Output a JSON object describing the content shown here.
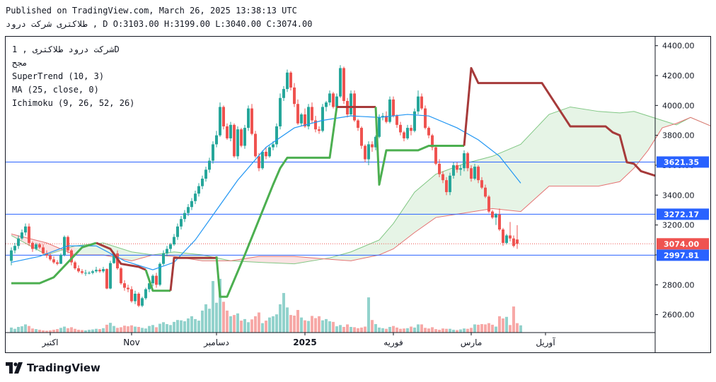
{
  "header": {
    "published": "Published on TradingView.com, March 26, 2025 13:38:13 UTC",
    "symbol_line": "طلاکتری  شرکت درود    , D O:3103.00 H:3199.00 L:3040.00 C:3074.00"
  },
  "legend": {
    "symbol": "شرکت درود  طلاکتری , 1D",
    "exchange": "مجح",
    "indicators": [
      "SuperTrend (10, 3)",
      "MA (25, close, 0)",
      "Ichimoku (9, 26, 52, 26)"
    ]
  },
  "colors": {
    "up": "#26a69a",
    "down": "#ef5350",
    "supertrend_up": "#4caf50",
    "supertrend_down": "#a63a3a",
    "ma": "#2196f3",
    "hline": "#2962ff",
    "cloud_green": "#a5d6a7",
    "cloud_red": "#ef9a9a"
  },
  "chart_data": {
    "type": "candlestick",
    "ylim": [
      2480,
      4460
    ],
    "y_ticks": [
      2600,
      2800,
      3000,
      3200,
      3400,
      3600,
      3800,
      4000,
      4200,
      4400
    ],
    "y_tick_labels": [
      "2600.00",
      "2800.00",
      "3000.00",
      "3200.00",
      "3400.00",
      "3600.00",
      "3800.00",
      "4000.00",
      "4200.00",
      "4400.00"
    ],
    "x_ticks": [
      {
        "label": "اکتبر",
        "index": 11
      },
      {
        "label": "Nov",
        "index": 34
      },
      {
        "label": "دسامبر",
        "index": 58
      },
      {
        "label": "2025",
        "index": 83,
        "bold": true
      },
      {
        "label": "فوریه",
        "index": 108
      },
      {
        "label": "مارس",
        "index": 130
      },
      {
        "label": "آوریل",
        "index": 151
      }
    ],
    "price_lines": [
      {
        "value": 3621.35,
        "label": "3621.35",
        "color": "#2962ff"
      },
      {
        "value": 3272.17,
        "label": "3272.17",
        "color": "#2962ff"
      },
      {
        "value": 2997.81,
        "label": "2997.81",
        "color": "#2962ff"
      },
      {
        "value": 3074.0,
        "label": "3074.00",
        "color": "#ef5350",
        "dotted": true
      }
    ],
    "candles": [
      [
        2960,
        3050,
        2930,
        3030
      ],
      [
        3030,
        3080,
        3010,
        3060
      ],
      [
        3060,
        3130,
        3040,
        3110
      ],
      [
        3110,
        3170,
        3100,
        3150
      ],
      [
        3150,
        3210,
        3130,
        3190
      ],
      [
        3190,
        3210,
        3060,
        3080
      ],
      [
        3080,
        3090,
        3020,
        3040
      ],
      [
        3040,
        3080,
        3030,
        3070
      ],
      [
        3070,
        3080,
        3040,
        3050
      ],
      [
        3050,
        3070,
        3000,
        3010
      ],
      [
        3010,
        3030,
        2980,
        2995
      ],
      [
        2995,
        3010,
        2960,
        2970
      ],
      [
        2970,
        2990,
        2940,
        2950
      ],
      [
        2950,
        2965,
        2930,
        2940
      ],
      [
        2940,
        3010,
        2940,
        3000
      ],
      [
        3000,
        3130,
        2990,
        3120
      ],
      [
        3120,
        3130,
        3010,
        3030
      ],
      [
        3030,
        3040,
        2930,
        2950
      ],
      [
        2950,
        2960,
        2900,
        2910
      ],
      [
        2910,
        2930,
        2880,
        2890
      ],
      [
        2890,
        2905,
        2870,
        2880
      ],
      [
        2880,
        2900,
        2860,
        2880
      ],
      [
        2880,
        2890,
        2870,
        2880
      ],
      [
        2880,
        2900,
        2870,
        2890
      ],
      [
        2890,
        2920,
        2880,
        2900
      ],
      [
        2900,
        2910,
        2880,
        2890
      ],
      [
        2890,
        2920,
        2880,
        2905
      ],
      [
        2905,
        2910,
        2770,
        2775
      ],
      [
        2775,
        2960,
        2770,
        2945
      ],
      [
        2945,
        3020,
        2940,
        3010
      ],
      [
        3010,
        3030,
        2900,
        2910
      ],
      [
        2910,
        2920,
        2800,
        2810
      ],
      [
        2810,
        2830,
        2760,
        2780
      ],
      [
        2780,
        2800,
        2750,
        2770
      ],
      [
        2770,
        2790,
        2680,
        2690
      ],
      [
        2690,
        2760,
        2670,
        2740
      ],
      [
        2740,
        2750,
        2650,
        2660
      ],
      [
        2660,
        2720,
        2650,
        2710
      ],
      [
        2710,
        2780,
        2700,
        2770
      ],
      [
        2770,
        2820,
        2750,
        2810
      ],
      [
        2810,
        2870,
        2790,
        2860
      ],
      [
        2860,
        2880,
        2780,
        2800
      ],
      [
        2800,
        2950,
        2790,
        2940
      ],
      [
        2940,
        3030,
        2930,
        3010
      ],
      [
        3010,
        3060,
        2990,
        3040
      ],
      [
        3040,
        3080,
        3020,
        3070
      ],
      [
        3070,
        3140,
        3060,
        3120
      ],
      [
        3120,
        3210,
        3100,
        3190
      ],
      [
        3190,
        3260,
        3170,
        3240
      ],
      [
        3240,
        3300,
        3220,
        3280
      ],
      [
        3280,
        3340,
        3260,
        3320
      ],
      [
        3320,
        3380,
        3300,
        3360
      ],
      [
        3360,
        3430,
        3340,
        3410
      ],
      [
        3410,
        3480,
        3390,
        3460
      ],
      [
        3460,
        3530,
        3440,
        3510
      ],
      [
        3510,
        3590,
        3490,
        3570
      ],
      [
        3570,
        3650,
        3550,
        3630
      ],
      [
        3630,
        3760,
        3610,
        3740
      ],
      [
        3740,
        3830,
        3720,
        3800
      ],
      [
        3800,
        4020,
        3790,
        3990
      ],
      [
        3990,
        4000,
        3840,
        3860
      ],
      [
        3860,
        3880,
        3770,
        3780
      ],
      [
        3780,
        3890,
        3760,
        3870
      ],
      [
        3870,
        3880,
        3650,
        3660
      ],
      [
        3660,
        3860,
        3640,
        3840
      ],
      [
        3840,
        3850,
        3720,
        3730
      ],
      [
        3730,
        3870,
        3710,
        3850
      ],
      [
        3850,
        4000,
        3830,
        3980
      ],
      [
        3980,
        4010,
        3800,
        3810
      ],
      [
        3810,
        3830,
        3650,
        3660
      ],
      [
        3660,
        3680,
        3560,
        3580
      ],
      [
        3580,
        3700,
        3570,
        3690
      ],
      [
        3690,
        3720,
        3640,
        3660
      ],
      [
        3660,
        3730,
        3650,
        3720
      ],
      [
        3720,
        3760,
        3700,
        3740
      ],
      [
        3740,
        3880,
        3720,
        3860
      ],
      [
        3860,
        4080,
        3840,
        4050
      ],
      [
        4050,
        4130,
        4030,
        4110
      ],
      [
        4110,
        4240,
        4090,
        4220
      ],
      [
        4220,
        4230,
        4100,
        4120
      ],
      [
        4120,
        4150,
        3990,
        4010
      ],
      [
        4010,
        4040,
        3870,
        3880
      ],
      [
        3880,
        3950,
        3860,
        3940
      ],
      [
        3940,
        3980,
        3850,
        3860
      ],
      [
        3860,
        4010,
        3840,
        3990
      ],
      [
        3990,
        4020,
        3880,
        3900
      ],
      [
        3900,
        3930,
        3820,
        3840
      ],
      [
        3840,
        3860,
        3810,
        3830
      ],
      [
        3830,
        4010,
        3820,
        3990
      ],
      [
        3990,
        4030,
        3960,
        4020
      ],
      [
        4020,
        4100,
        4000,
        4080
      ],
      [
        4080,
        4090,
        3980,
        3990
      ],
      [
        3990,
        4080,
        3970,
        4060
      ],
      [
        4060,
        4270,
        4050,
        4250
      ],
      [
        4250,
        4260,
        4010,
        4030
      ],
      [
        4030,
        4050,
        3920,
        3940
      ],
      [
        3940,
        4100,
        3930,
        4080
      ],
      [
        4080,
        4100,
        3890,
        3900
      ],
      [
        3900,
        3910,
        3830,
        3850
      ],
      [
        3850,
        3860,
        3710,
        3730
      ],
      [
        3730,
        3740,
        3620,
        3640
      ],
      [
        3640,
        3760,
        3600,
        3740
      ],
      [
        3740,
        3760,
        3690,
        3720
      ],
      [
        3720,
        3800,
        3700,
        3790
      ],
      [
        3790,
        3940,
        3780,
        3920
      ],
      [
        3920,
        3950,
        3900,
        3930
      ],
      [
        3930,
        3960,
        3880,
        3890
      ],
      [
        3890,
        4060,
        3880,
        4040
      ],
      [
        4040,
        4060,
        3920,
        3930
      ],
      [
        3930,
        3940,
        3850,
        3870
      ],
      [
        3870,
        3890,
        3800,
        3820
      ],
      [
        3820,
        3830,
        3760,
        3780
      ],
      [
        3780,
        3870,
        3770,
        3850
      ],
      [
        3850,
        3870,
        3800,
        3830
      ],
      [
        3830,
        3980,
        3820,
        3960
      ],
      [
        3960,
        4100,
        3940,
        4060
      ],
      [
        4060,
        4080,
        3970,
        3980
      ],
      [
        3980,
        4000,
        3840,
        3850
      ],
      [
        3850,
        3860,
        3780,
        3800
      ],
      [
        3800,
        3810,
        3700,
        3720
      ],
      [
        3720,
        3730,
        3600,
        3610
      ],
      [
        3610,
        3640,
        3520,
        3540
      ],
      [
        3540,
        3560,
        3480,
        3500
      ],
      [
        3500,
        3520,
        3400,
        3420
      ],
      [
        3420,
        3550,
        3400,
        3530
      ],
      [
        3530,
        3620,
        3510,
        3600
      ],
      [
        3600,
        3620,
        3550,
        3570
      ],
      [
        3570,
        3600,
        3530,
        3580
      ],
      [
        3580,
        3700,
        3560,
        3680
      ],
      [
        3680,
        3690,
        3560,
        3580
      ],
      [
        3580,
        3600,
        3490,
        3510
      ],
      [
        3510,
        3610,
        3500,
        3590
      ],
      [
        3590,
        3600,
        3480,
        3500
      ],
      [
        3500,
        3520,
        3440,
        3450
      ],
      [
        3450,
        3470,
        3380,
        3390
      ],
      [
        3390,
        3400,
        3280,
        3290
      ],
      [
        3290,
        3300,
        3240,
        3250
      ],
      [
        3250,
        3280,
        3200,
        3270
      ],
      [
        3270,
        3310,
        3160,
        3170
      ],
      [
        3170,
        3180,
        3060,
        3080
      ],
      [
        3080,
        3140,
        3070,
        3130
      ],
      [
        3130,
        3220,
        3090,
        3110
      ],
      [
        3110,
        3130,
        3050,
        3060
      ],
      [
        3103,
        3199,
        3040,
        3074
      ]
    ],
    "volume_ylim": [
      0,
      2000
    ],
    "volumes": [
      160,
      120,
      180,
      200,
      260,
      210,
      130,
      110,
      90,
      70,
      60,
      70,
      90,
      110,
      150,
      190,
      140,
      170,
      120,
      90,
      80,
      70,
      90,
      100,
      120,
      110,
      140,
      250,
      310,
      210,
      150,
      170,
      220,
      200,
      230,
      190,
      180,
      150,
      130,
      210,
      240,
      170,
      280,
      330,
      270,
      240,
      340,
      400,
      390,
      360,
      450,
      520,
      430,
      380,
      700,
      900,
      760,
      1640,
      950,
      1710,
      980,
      700,
      520,
      560,
      610,
      380,
      430,
      330,
      420,
      520,
      640,
      300,
      380,
      480,
      520,
      580,
      900,
      1260,
      800,
      560,
      540,
      720,
      480,
      390,
      370,
      530,
      460,
      520,
      390,
      430,
      360,
      340,
      200,
      240,
      180,
      260,
      180,
      170,
      140,
      160,
      190,
      1120,
      400,
      270,
      160,
      140,
      120,
      180,
      210,
      160,
      120,
      130,
      140,
      190,
      160,
      260,
      260,
      150,
      130,
      170,
      110,
      90,
      130,
      120,
      120,
      90,
      80,
      100,
      130,
      120,
      150,
      260,
      250,
      270,
      260,
      300,
      250,
      190,
      520,
      450,
      500,
      240,
      830,
      300,
      230
    ],
    "ma": [
      [
        0,
        2950
      ],
      [
        8,
        2990
      ],
      [
        16,
        3060
      ],
      [
        24,
        3060
      ],
      [
        32,
        2960
      ],
      [
        40,
        2900
      ],
      [
        46,
        2950
      ],
      [
        52,
        3100
      ],
      [
        58,
        3300
      ],
      [
        64,
        3500
      ],
      [
        72,
        3720
      ],
      [
        80,
        3850
      ],
      [
        88,
        3900
      ],
      [
        96,
        3930
      ],
      [
        104,
        3920
      ],
      [
        112,
        3940
      ],
      [
        118,
        3930
      ],
      [
        126,
        3850
      ],
      [
        132,
        3770
      ],
      [
        138,
        3660
      ],
      [
        144,
        3480
      ]
    ],
    "supertrend": [
      {
        "trend": "up",
        "points": [
          [
            0,
            2810
          ],
          [
            8,
            2810
          ],
          [
            12,
            2850
          ],
          [
            20,
            3050
          ],
          [
            24,
            3080
          ]
        ]
      },
      {
        "trend": "down",
        "points": [
          [
            24,
            3080
          ],
          [
            28,
            3040
          ],
          [
            31,
            2940
          ],
          [
            36,
            2920
          ],
          [
            38,
            2900
          ]
        ]
      },
      {
        "trend": "up",
        "points": [
          [
            38,
            2900
          ],
          [
            40,
            2760
          ],
          [
            45,
            2760
          ]
        ]
      },
      {
        "trend": "down",
        "points": [
          [
            45,
            2760
          ],
          [
            46,
            2980
          ],
          [
            58,
            2980
          ],
          [
            58,
            2990
          ]
        ]
      },
      {
        "trend": "up",
        "points": [
          [
            58,
            2990
          ],
          [
            59,
            2720
          ],
          [
            61,
            2720
          ],
          [
            66,
            3000
          ],
          [
            74,
            3470
          ],
          [
            76,
            3580
          ],
          [
            78,
            3650
          ],
          [
            90,
            3650
          ],
          [
            92,
            3990
          ]
        ]
      },
      {
        "trend": "down",
        "points": [
          [
            92,
            3990
          ],
          [
            103,
            3990
          ]
        ]
      },
      {
        "trend": "up",
        "points": [
          [
            103,
            3990
          ],
          [
            104,
            3470
          ],
          [
            106,
            3700
          ],
          [
            115,
            3700
          ],
          [
            118,
            3730
          ],
          [
            128,
            3730
          ]
        ]
      },
      {
        "trend": "down",
        "points": [
          [
            128,
            3730
          ],
          [
            130,
            4250
          ],
          [
            132,
            4150
          ],
          [
            140,
            4150
          ],
          [
            150,
            4150
          ],
          [
            158,
            3860
          ],
          [
            168,
            3860
          ],
          [
            170,
            3820
          ],
          [
            172,
            3800
          ],
          [
            174,
            3620
          ],
          [
            176,
            3610
          ],
          [
            178,
            3560
          ],
          [
            182,
            3530
          ]
        ]
      }
    ],
    "cloud": [
      [
        0,
        3130,
        3140
      ],
      [
        10,
        3000,
        3080
      ],
      [
        18,
        3060,
        3000
      ],
      [
        26,
        3080,
        3000
      ],
      [
        34,
        3020,
        2960
      ],
      [
        40,
        3000,
        3000
      ],
      [
        46,
        3020,
        2990
      ],
      [
        54,
        3000,
        2960
      ],
      [
        62,
        2960,
        2960
      ],
      [
        70,
        2950,
        2990
      ],
      [
        80,
        2940,
        2990
      ],
      [
        90,
        2980,
        2970
      ],
      [
        96,
        3020,
        2960
      ],
      [
        104,
        3100,
        3000
      ],
      [
        108,
        3210,
        3040
      ],
      [
        114,
        3420,
        3150
      ],
      [
        120,
        3540,
        3250
      ],
      [
        128,
        3610,
        3280
      ],
      [
        136,
        3660,
        3310
      ],
      [
        144,
        3740,
        3290
      ],
      [
        152,
        3940,
        3460
      ],
      [
        158,
        3990,
        3460
      ],
      [
        166,
        3960,
        3460
      ],
      [
        172,
        3950,
        3490
      ],
      [
        176,
        3960,
        3580
      ],
      [
        180,
        3930,
        3700
      ],
      [
        184,
        3900,
        3850
      ],
      [
        188,
        3870,
        3880
      ],
      [
        192,
        3920,
        3920
      ],
      [
        198,
        3860,
        3860
      ]
    ],
    "x_count": 200
  }
}
